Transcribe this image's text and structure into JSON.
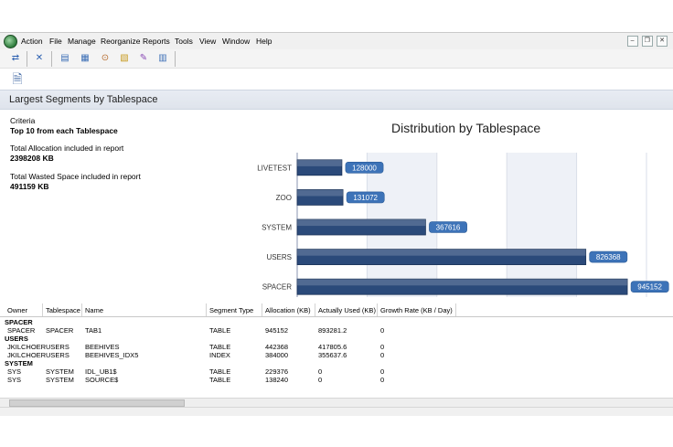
{
  "menubar": {
    "items": [
      "Action",
      "File",
      "Manage",
      "Reorganize",
      "Reports",
      "Tools",
      "View",
      "Window",
      "Help"
    ]
  },
  "toolbar": {
    "icons": [
      "connect-icon",
      "disconnect-icon",
      "document-icon",
      "table-icon",
      "search-icon",
      "tree-icon",
      "edit-icon",
      "grid-icon"
    ]
  },
  "report": {
    "title": "Largest Segments by Tablespace",
    "criteria_label": "Criteria",
    "criteria_value": "Top 10 from each Tablespace",
    "alloc_label": "Total Allocation included in report",
    "alloc_value": "2398208 KB",
    "wasted_label": "Total Wasted Space included in report",
    "wasted_value": "491159 KB"
  },
  "chart_data": {
    "type": "bar",
    "orientation": "horizontal",
    "title": "Distribution by Tablespace",
    "categories": [
      "LIVETEST",
      "ZOO",
      "SYSTEM",
      "USERS",
      "SPACER"
    ],
    "values": [
      128000,
      131072,
      367616,
      826368,
      945152
    ],
    "xlim": [
      0,
      1000000
    ],
    "xticks": [
      "0",
      "200000",
      "400000",
      "600000",
      "800000",
      "1000000"
    ],
    "bar_color": "#2b4a7a",
    "label_color": "#3d73b8"
  },
  "grid": {
    "headers": [
      "Owner",
      "Tablespace",
      "Name",
      "Segment Type",
      "Allocation (KB)",
      "Actually Used (KB)",
      "Growth Rate (KB / Day)"
    ],
    "groups": [
      {
        "name": "SPACER",
        "rows": [
          [
            "SPACER",
            "SPACER",
            "TAB1",
            "TABLE",
            "945152",
            "893281.2",
            "0"
          ]
        ]
      },
      {
        "name": "USERS",
        "rows": [
          [
            "JKILCHOER",
            "USERS",
            "BEEHIVES",
            "TABLE",
            "442368",
            "417805.6",
            "0"
          ],
          [
            "JKILCHOER",
            "USERS",
            "BEEHIVES_IDX5",
            "INDEX",
            "384000",
            "355637.6",
            "0"
          ]
        ]
      },
      {
        "name": "SYSTEM",
        "rows": [
          [
            "SYS",
            "SYSTEM",
            "IDL_UB1$",
            "TABLE",
            "229376",
            "0",
            "0"
          ],
          [
            "SYS",
            "SYSTEM",
            "SOURCE$",
            "TABLE",
            "138240",
            "0",
            "0"
          ]
        ]
      }
    ]
  }
}
